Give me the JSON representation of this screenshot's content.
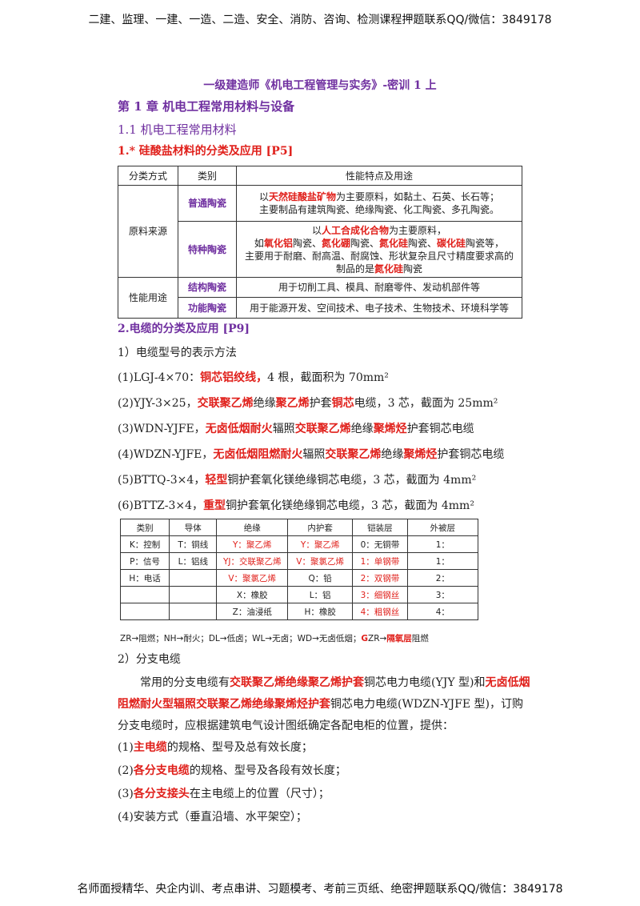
{
  "header": "二建、监理、一建、一造、二造、安全、消防、咨询、检测课程押题联系QQ/微信：3849178",
  "title": "一级建造师《机电工程管理与实务》-密训 1 上",
  "chapter": "第 1 章 机电工程常用材料与设备",
  "section": "1.1 机电工程常用材料",
  "topic1": "1.* 硅酸盐材料的分类及应用 [P5]",
  "table1": {
    "header": [
      "分类方式",
      "类别",
      "性能特点及用途"
    ],
    "groups": [
      {
        "label": "原料来源",
        "rows": [
          {
            "category": "普通陶瓷",
            "desc": [
              [
                "以",
                {
                  "text": "天然硅酸盐矿物",
                  "color": "#e0201b"
                },
                "为主要原料，如黏土、石英、长石等；"
              ],
              [
                "主要制品有建筑陶瓷、绝缘陶瓷、化工陶瓷、多孔陶瓷。"
              ]
            ]
          },
          {
            "category": "特种陶瓷",
            "desc": [
              [
                "以",
                {
                  "text": "人工合成化合物",
                  "color": "#e0201b"
                },
                "为主要原料，"
              ],
              [
                "如",
                {
                  "text": "氧化铝",
                  "color": "#e0201b"
                },
                "陶瓷、",
                {
                  "text": "氮化硼",
                  "color": "#e0201b"
                },
                "陶瓷、",
                {
                  "text": "氮化硅",
                  "color": "#e0201b"
                },
                "陶瓷、",
                {
                  "text": "碳化硅",
                  "color": "#e0201b"
                },
                "陶瓷等，"
              ],
              [
                "主要用于耐磨、耐高温、耐腐蚀、形状复杂且尺寸精度要求高的"
              ],
              [
                "制品的是",
                {
                  "text": "氮化硅",
                  "color": "#e0201b"
                },
                "陶瓷"
              ]
            ]
          }
        ]
      },
      {
        "label": "性能用途",
        "rows": [
          {
            "category": "结构陶瓷",
            "desc": [
              [
                "用于切削工具、模具、耐磨零件、发动机部件等"
              ]
            ]
          },
          {
            "category": "功能陶瓷",
            "desc": [
              [
                "用于能源开发、空间技术、电子技术、生物技术、环境科学等"
              ]
            ]
          }
        ]
      }
    ]
  },
  "topic2": "2.电缆的分类及应用 [P9]",
  "sub1": "1）电缆型号的表示方法",
  "lines": [
    [
      "(1)LGJ-4×70：",
      {
        "text": "铜芯铝绞线，",
        "color": "#e0201b"
      },
      "4 根，截面积为 70mm²"
    ],
    [
      "(2)YJY-3×25，",
      {
        "text": "交联聚乙烯",
        "color": "#e0201b"
      },
      "绝缘",
      {
        "text": "聚乙烯",
        "color": "#e0201b"
      },
      "护套",
      {
        "text": "铜芯",
        "color": "#e0201b"
      },
      "电缆，3 芯，截面为 25mm²"
    ],
    [
      "(3)WDN-YJFE，",
      {
        "text": "无卤低烟耐火",
        "color": "#e0201b"
      },
      "辐照",
      {
        "text": "交联聚乙烯",
        "color": "#e0201b"
      },
      "绝缘",
      {
        "text": "聚烯烃",
        "color": "#e0201b"
      },
      "护套铜芯电缆"
    ],
    [
      "(4)WDZN-YJFE，",
      {
        "text": "无卤低烟阻燃耐火",
        "color": "#e0201b"
      },
      "辐照",
      {
        "text": "交联聚乙烯",
        "color": "#e0201b"
      },
      "绝缘",
      {
        "text": "聚烯烃",
        "color": "#e0201b"
      },
      "护套铜芯电缆"
    ],
    [
      "(5)BTTQ-3×4，",
      {
        "text": "轻型",
        "color": "#e0201b"
      },
      "铜护套氧化镁绝缘铜芯电缆，3 芯，截面为 4mm²"
    ],
    [
      "(6)BTTZ-3×4，",
      {
        "text": "重型",
        "color": "#e0201b"
      },
      "铜护套氧化镁绝缘铜芯电缆，3 芯，截面为 4mm²"
    ]
  ],
  "table2": {
    "header": [
      "类别",
      "导体",
      "绝缘",
      "内护套",
      "铠装层",
      "外被层"
    ],
    "rows": [
      [
        "K：控制",
        "T：铜线",
        {
          "text": "Y：聚乙烯",
          "color": "#e0201b"
        },
        {
          "text": "Y：聚乙烯",
          "color": "#e0201b"
        },
        "0：无铜带",
        "1："
      ],
      [
        "P：信号",
        "L：铝线",
        {
          "text": "YJ：交联聚乙烯",
          "color": "#e0201b"
        },
        {
          "text": "V：聚氯乙烯",
          "color": "#e0201b"
        },
        {
          "text": "1：单钢带",
          "color": "#e0201b"
        },
        "1："
      ],
      [
        "H：电话",
        null,
        {
          "text": "V：聚氯乙烯",
          "color": "#e0201b"
        },
        "Q：铅",
        {
          "text": "2：双钢带",
          "color": "#e0201b"
        },
        "2："
      ],
      [
        null,
        null,
        "X：橡胶",
        "L：铝",
        {
          "text": "3：细钢丝",
          "color": "#e0201b"
        },
        "3："
      ],
      [
        null,
        null,
        "Z：油浸纸",
        "H：橡胶",
        {
          "text": "4：粗钢丝",
          "color": "#e0201b"
        },
        "4："
      ]
    ]
  },
  "note": [
    "ZR→阻燃；NH→耐火；DL→低卤；WL→无卤；WD→无卤低烟；",
    {
      "text": "G",
      "color": "#e0201b"
    },
    "ZR→",
    {
      "text": "隔氧层",
      "color": "#e0201b"
    },
    "阻燃"
  ],
  "sub2": "2）分支电缆",
  "paragraph": [
    "常用的分支电缆有",
    {
      "text": "交联聚乙烯绝缘聚乙烯护套",
      "color": "#e0201b"
    },
    "铜芯电力电缆(YJY 型)和",
    {
      "text": "无卤低烟阻燃耐火型辐照交联聚乙烯绝缘聚烯烃护套",
      "color": "#e0201b"
    },
    "铜芯电力电缆(WDZN-YJFE 型)，订购分支电缆时，应根据建筑电气设计图纸确定各配电柜的位置，提供："
  ],
  "items": [
    [
      "(1)",
      {
        "text": "主电缆",
        "color": "#e0201b"
      },
      "的规格、型号及总有效长度；"
    ],
    [
      "(2)",
      {
        "text": "各分支电缆",
        "color": "#e0201b"
      },
      "的规格、型号及各段有效长度；"
    ],
    [
      "(3)",
      {
        "text": "各分支接头",
        "color": "#e0201b"
      },
      "在主电缆上的位置（尺寸）；"
    ],
    [
      "(4)安装方式（垂直沿墙、水平架空）；"
    ]
  ],
  "footer": "名师面授精华、央企内训、考点串讲、习题模考、考前三页纸、绝密押题联系QQ/微信：3849178"
}
